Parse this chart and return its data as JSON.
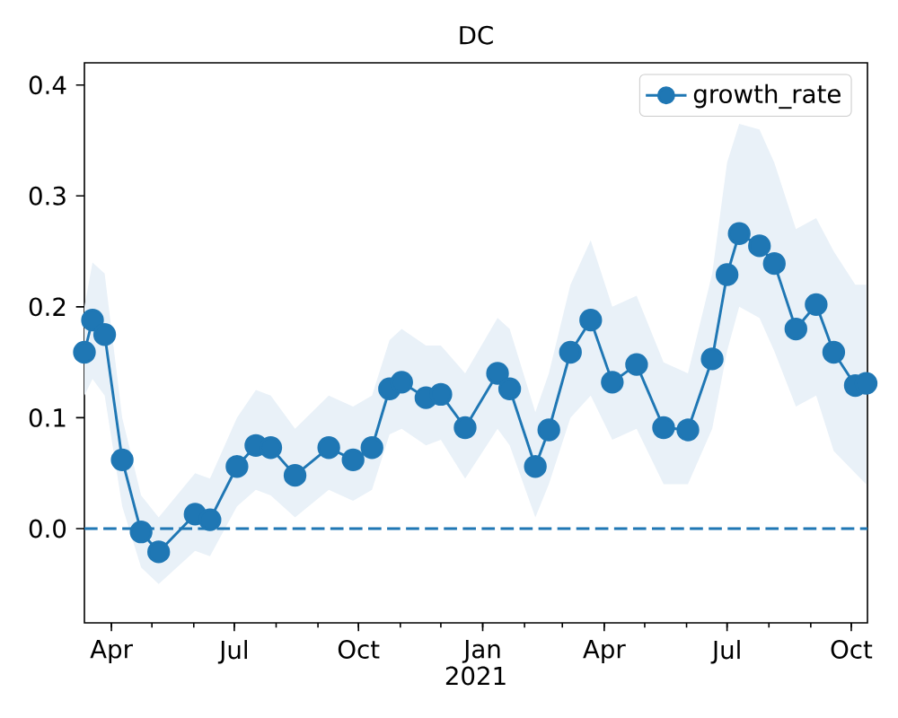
{
  "chart_data": {
    "type": "line",
    "title": "DC",
    "xlabel": "2021",
    "x": [
      "2020-03-12",
      "2020-03-18",
      "2020-03-27",
      "2020-04-09",
      "2020-04-23",
      "2020-05-06",
      "2020-06-02",
      "2020-06-13",
      "2020-07-03",
      "2020-07-17",
      "2020-07-28",
      "2020-08-15",
      "2020-09-09",
      "2020-09-27",
      "2020-10-11",
      "2020-10-24",
      "2020-11-02",
      "2020-11-20",
      "2020-12-01",
      "2020-12-19",
      "2021-01-12",
      "2021-01-21",
      "2021-02-09",
      "2021-02-19",
      "2021-03-07",
      "2021-03-22",
      "2021-04-07",
      "2021-04-25",
      "2021-05-15",
      "2021-06-02",
      "2021-06-20",
      "2021-07-01",
      "2021-07-10",
      "2021-07-25",
      "2021-08-05",
      "2021-08-21",
      "2021-09-05",
      "2021-09-18",
      "2021-10-04",
      "2021-10-12"
    ],
    "series": [
      {
        "name": "growth_rate",
        "color": "#1f77b4",
        "values": [
          0.159,
          0.188,
          0.175,
          0.062,
          -0.003,
          -0.021,
          0.013,
          0.008,
          0.056,
          0.075,
          0.073,
          0.048,
          0.073,
          0.062,
          0.073,
          0.126,
          0.132,
          0.118,
          0.121,
          0.091,
          0.14,
          0.126,
          0.056,
          0.089,
          0.159,
          0.188,
          0.132,
          0.148,
          0.091,
          0.089,
          0.153,
          0.229,
          0.266,
          0.255,
          0.239,
          0.18,
          0.202,
          0.159,
          0.129,
          0.131
        ],
        "lower": [
          0.12,
          0.135,
          0.12,
          0.02,
          -0.035,
          -0.05,
          -0.02,
          -0.025,
          0.02,
          0.035,
          0.03,
          0.01,
          0.035,
          0.025,
          0.035,
          0.085,
          0.09,
          0.075,
          0.08,
          0.045,
          0.09,
          0.075,
          0.01,
          0.04,
          0.1,
          0.12,
          0.08,
          0.09,
          0.04,
          0.04,
          0.09,
          0.16,
          0.2,
          0.19,
          0.16,
          0.11,
          0.12,
          0.07,
          0.05,
          0.04
        ],
        "upper": [
          0.2,
          0.24,
          0.23,
          0.1,
          0.03,
          0.01,
          0.05,
          0.045,
          0.1,
          0.125,
          0.12,
          0.09,
          0.12,
          0.11,
          0.12,
          0.17,
          0.18,
          0.165,
          0.165,
          0.14,
          0.19,
          0.18,
          0.105,
          0.14,
          0.22,
          0.26,
          0.2,
          0.21,
          0.15,
          0.14,
          0.23,
          0.33,
          0.365,
          0.36,
          0.33,
          0.27,
          0.28,
          0.25,
          0.22,
          0.22
        ]
      }
    ],
    "xlim": [
      "2020-03-12",
      "2021-10-13"
    ],
    "xticks": [
      {
        "value": "2020-04-01",
        "label": "Apr"
      },
      {
        "value": "2020-07-01",
        "label": "Jul"
      },
      {
        "value": "2020-10-01",
        "label": "Oct"
      },
      {
        "value": "2021-01-01",
        "label": "Jan"
      },
      {
        "value": "2021-04-01",
        "label": "Apr"
      },
      {
        "value": "2021-07-01",
        "label": "Jul"
      },
      {
        "value": "2021-10-01",
        "label": "Oct"
      }
    ],
    "ylim": [
      -0.085,
      0.42
    ],
    "yticks": [
      {
        "value": 0,
        "label": "0.0"
      },
      {
        "value": 0.1,
        "label": "0.1"
      },
      {
        "value": 0.2,
        "label": "0.2"
      },
      {
        "value": 0.3,
        "label": "0.3"
      },
      {
        "value": 0.4,
        "label": "0.4"
      }
    ],
    "ref_lines": [
      {
        "axis": "y",
        "value": 0,
        "color": "#1f77b4",
        "line_style": "dashed"
      }
    ],
    "legend": "top right",
    "marker": "circle",
    "line_style": "solid",
    "grid": false
  }
}
